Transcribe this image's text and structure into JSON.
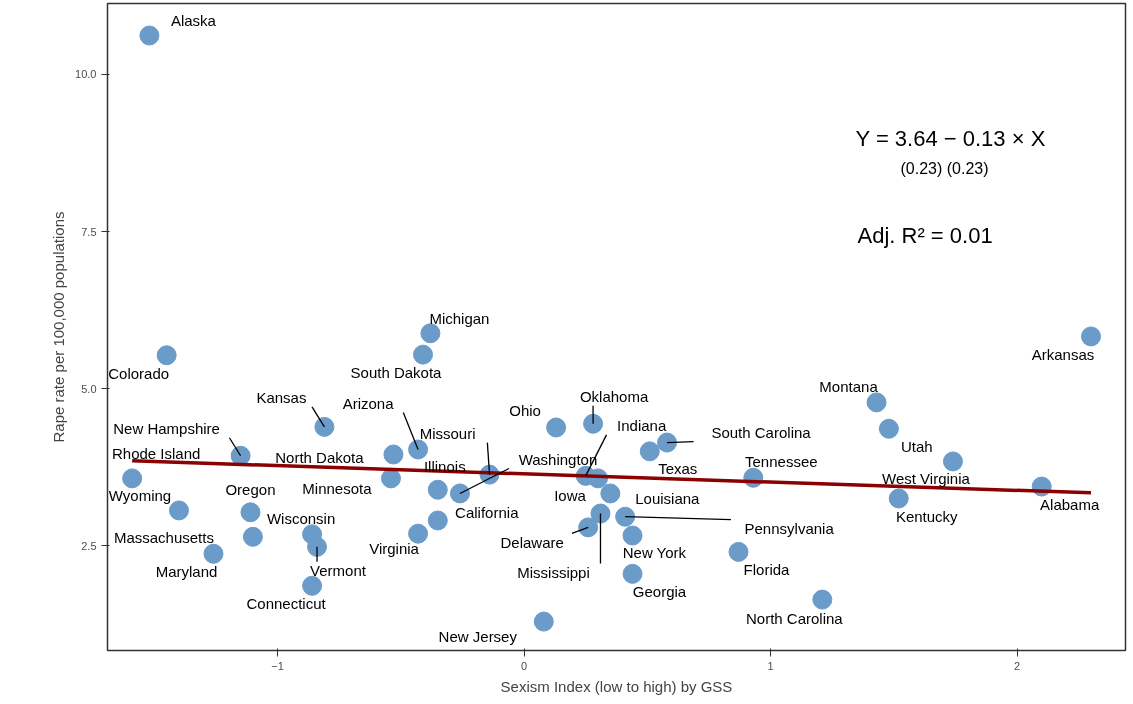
{
  "chart_data": {
    "type": "scatter",
    "xlabel": "Sexism Index (low to high) by GSS",
    "ylabel": "Rape rate per 100,000 populations",
    "xlim": [
      -1.69,
      2.44
    ],
    "ylim": [
      0.83,
      11.13
    ],
    "xticks": [
      {
        "value": -1,
        "label": "−1"
      },
      0,
      1,
      2
    ],
    "yticks": [
      2.5,
      {
        "value": 5,
        "label": "5.0"
      },
      7.5,
      {
        "value": 10,
        "label": "10.0"
      }
    ],
    "grid": false,
    "series": [
      {
        "marker": "circle",
        "color": "#6a9bc9",
        "x": [
          -1.52,
          -1.45,
          -0.38,
          -0.41,
          2.3,
          1.43,
          1.48,
          -0.81,
          0.13,
          0.28,
          0.25,
          0.58,
          0.51,
          -0.43,
          -0.14,
          -0.35,
          -0.26,
          -0.35,
          -0.43,
          -0.53,
          -0.54,
          -1.15,
          -1.59,
          -1.4,
          -1.11,
          -0.86,
          -0.84,
          -0.86,
          -1.1,
          -1.26,
          0.08,
          0.3,
          0.35,
          0.26,
          0.31,
          0.41,
          0.44,
          0.44,
          0.87,
          0.93,
          1.21,
          1.52,
          1.74,
          2.1
        ],
        "values": [
          10.62,
          5.53,
          5.88,
          5.54,
          5.83,
          4.78,
          4.36,
          4.39,
          4.38,
          4.44,
          3.61,
          4.14,
          4.0,
          4.03,
          3.63,
          3.39,
          3.33,
          2.9,
          2.69,
          3.95,
          3.57,
          3.93,
          3.57,
          3.06,
          3.03,
          2.68,
          2.48,
          1.86,
          2.64,
          2.37,
          1.29,
          3.57,
          3.33,
          2.79,
          3.01,
          2.96,
          2.66,
          2.05,
          2.4,
          3.58,
          1.64,
          3.25,
          3.84,
          3.44
        ]
      },
      {
        "type": "line",
        "color": "#8b0000",
        "x": [
          -1.59,
          2.3
        ],
        "values": [
          3.85,
          3.34
        ]
      }
    ],
    "annotations": [
      "Y = 3.64 − 0.13 × X",
      "(0.23)     (0.23)",
      "Adj. R² = 0.01",
      {
        "text": "Alaska",
        "x": -1.52,
        "y": 10.62
      },
      {
        "text": "Colorado",
        "x": -1.45,
        "y": 5.53
      },
      {
        "text": "Michigan",
        "x": -0.38,
        "y": 5.88
      },
      {
        "text": "South Dakota",
        "x": -0.41,
        "y": 5.54
      },
      {
        "text": "Arkansas",
        "x": 2.3,
        "y": 5.83
      },
      {
        "text": "Montana",
        "x": 1.43,
        "y": 4.78
      },
      {
        "text": "Utah",
        "x": 1.48,
        "y": 4.36
      },
      {
        "text": "Kansas",
        "x": -0.81,
        "y": 4.39
      },
      {
        "text": "Ohio",
        "x": 0.13,
        "y": 4.38
      },
      {
        "text": "Oklahoma",
        "x": 0.28,
        "y": 4.44
      },
      {
        "text": "Indiana",
        "x": 0.25,
        "y": 3.61
      },
      {
        "text": "South Carolina",
        "x": 0.58,
        "y": 4.14
      },
      {
        "text": "Texas",
        "x": 0.51,
        "y": 4.0
      },
      {
        "text": "Arizona",
        "x": -0.43,
        "y": 4.03
      },
      {
        "text": "Missouri",
        "x": -0.14,
        "y": 3.63
      },
      {
        "text": "Illinois",
        "x": -0.35,
        "y": 3.39
      },
      {
        "text": "Washington",
        "x": -0.26,
        "y": 3.33
      },
      {
        "text": "California",
        "x": -0.35,
        "y": 2.9
      },
      {
        "text": "Virginia",
        "x": -0.43,
        "y": 2.69
      },
      {
        "text": "North Dakota",
        "x": -0.53,
        "y": 3.95
      },
      {
        "text": "Minnesota",
        "x": -0.54,
        "y": 3.57
      },
      {
        "text": "New Hampshire",
        "x": -1.15,
        "y": 3.93
      },
      {
        "text": "Rhode Island",
        "x": -1.59,
        "y": 3.57
      },
      {
        "text": "Wyoming",
        "x": -1.4,
        "y": 3.06
      },
      {
        "text": "Oregon",
        "x": -1.11,
        "y": 3.03
      },
      {
        "text": "Wisconsin",
        "x": -0.86,
        "y": 2.68
      },
      {
        "text": "Vermont",
        "x": -0.84,
        "y": 2.48
      },
      {
        "text": "Connecticut",
        "x": -0.86,
        "y": 1.86
      },
      {
        "text": "Massachusetts",
        "x": -1.1,
        "y": 2.64
      },
      {
        "text": "Maryland",
        "x": -1.26,
        "y": 2.37
      },
      {
        "text": "New Jersey",
        "x": 0.08,
        "y": 1.29
      },
      {
        "text": "Iowa",
        "x": 0.3,
        "y": 3.57
      },
      {
        "text": "Louisiana",
        "x": 0.35,
        "y": 3.33
      },
      {
        "text": "Delaware",
        "x": 0.26,
        "y": 2.79
      },
      {
        "text": "Mississippi",
        "x": 0.31,
        "y": 3.01
      },
      {
        "text": "Pennsylvania",
        "x": 0.41,
        "y": 2.96
      },
      {
        "text": "New York",
        "x": 0.44,
        "y": 2.66
      },
      {
        "text": "Georgia",
        "x": 0.44,
        "y": 2.05
      },
      {
        "text": "Florida",
        "x": 0.87,
        "y": 2.4
      },
      {
        "text": "Tennessee",
        "x": 0.93,
        "y": 3.58
      },
      {
        "text": "North Carolina",
        "x": 1.21,
        "y": 1.64
      },
      {
        "text": "Kentucky",
        "x": 1.52,
        "y": 3.25
      },
      {
        "text": "West Virginia",
        "x": 1.74,
        "y": 3.84
      },
      {
        "text": "Alabama",
        "x": 2.1,
        "y": 3.44
      }
    ]
  }
}
